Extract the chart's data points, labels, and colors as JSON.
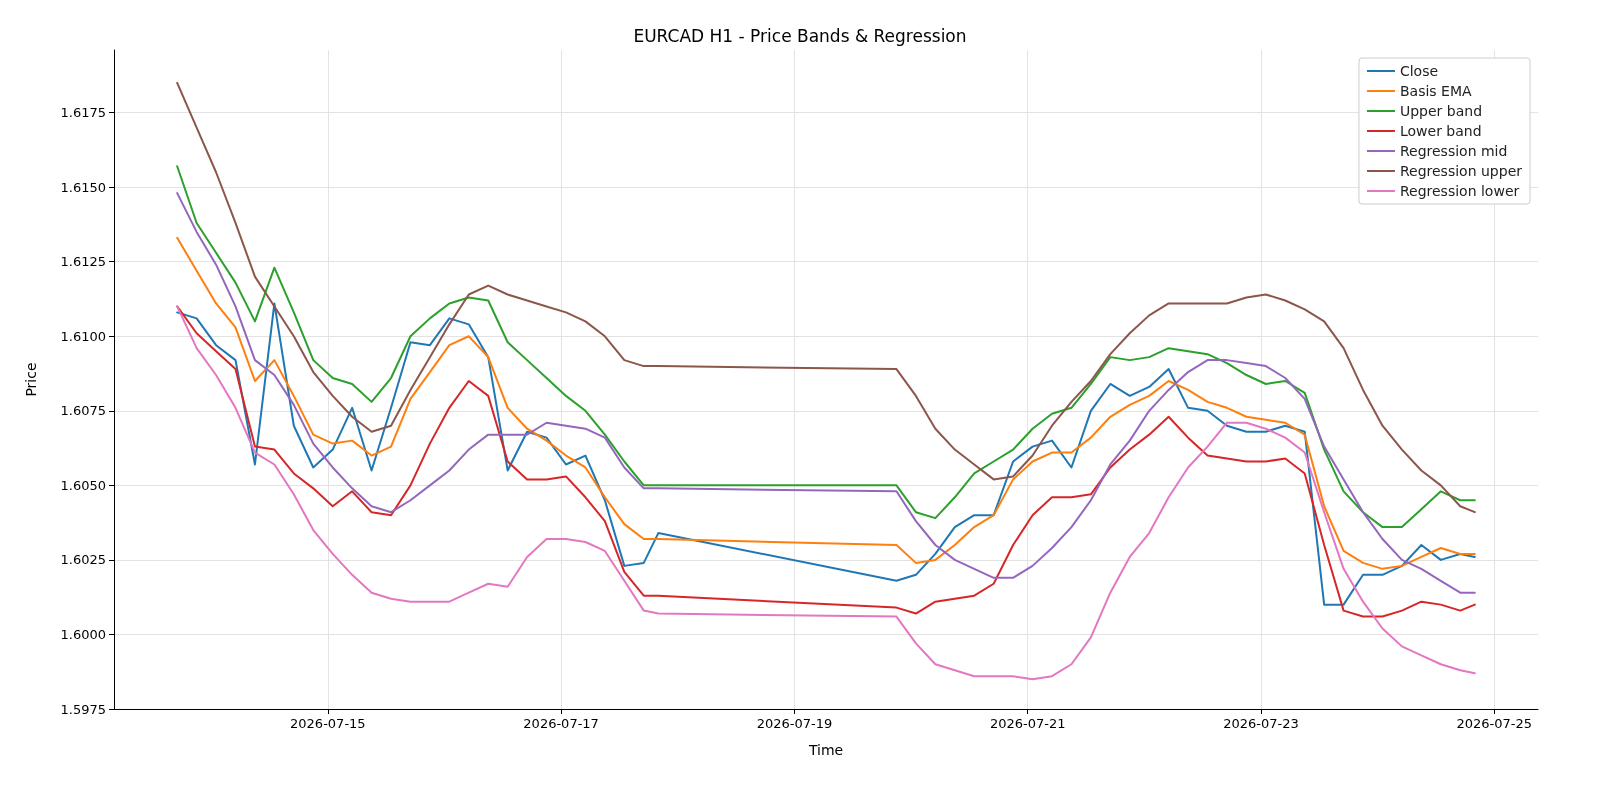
{
  "chart_data": {
    "type": "line",
    "title": "EURCAD H1 - Price Bands & Regression",
    "xlabel": "Time",
    "ylabel": "Price",
    "x": [
      "2026-07-13T17:00",
      "2026-07-13T21:00",
      "2026-07-14T01:00",
      "2026-07-14T05:00",
      "2026-07-14T09:00",
      "2026-07-14T13:00",
      "2026-07-14T17:00",
      "2026-07-14T21:00",
      "2026-07-15T01:00",
      "2026-07-15T05:00",
      "2026-07-15T09:00",
      "2026-07-15T13:00",
      "2026-07-15T17:00",
      "2026-07-15T21:00",
      "2026-07-16T01:00",
      "2026-07-16T05:00",
      "2026-07-16T09:00",
      "2026-07-16T13:00",
      "2026-07-16T17:00",
      "2026-07-16T21:00",
      "2026-07-17T01:00",
      "2026-07-17T05:00",
      "2026-07-17T09:00",
      "2026-07-17T13:00",
      "2026-07-17T17:00",
      "2026-07-17T20:00",
      "2026-07-19T21:00",
      "2026-07-20T01:00",
      "2026-07-20T05:00",
      "2026-07-20T09:00",
      "2026-07-20T13:00",
      "2026-07-20T17:00",
      "2026-07-20T21:00",
      "2026-07-21T01:00",
      "2026-07-21T05:00",
      "2026-07-21T09:00",
      "2026-07-21T13:00",
      "2026-07-21T17:00",
      "2026-07-21T21:00",
      "2026-07-22T01:00",
      "2026-07-22T05:00",
      "2026-07-22T09:00",
      "2026-07-22T13:00",
      "2026-07-22T17:00",
      "2026-07-22T21:00",
      "2026-07-23T01:00",
      "2026-07-23T05:00",
      "2026-07-23T09:00",
      "2026-07-23T13:00",
      "2026-07-23T17:00",
      "2026-07-23T21:00",
      "2026-07-24T01:00",
      "2026-07-24T05:00",
      "2026-07-24T09:00",
      "2026-07-24T13:00",
      "2026-07-24T17:00",
      "2026-07-24T20:00"
    ],
    "series": [
      {
        "name": "Close",
        "color": "#1f77b4",
        "values": [
          1.6108,
          1.6106,
          1.6097,
          1.6092,
          1.6057,
          1.6111,
          1.607,
          1.6056,
          1.6062,
          1.6076,
          1.6055,
          1.6076,
          1.6098,
          1.6097,
          1.6106,
          1.6104,
          1.6093,
          1.6055,
          1.6068,
          1.6066,
          1.6057,
          1.606,
          1.6045,
          1.6023,
          1.6024,
          1.6034,
          1.6018,
          1.602,
          1.6027,
          1.6036,
          1.604,
          1.604,
          1.6058,
          1.6063,
          1.6065,
          1.6056,
          1.6075,
          1.6084,
          1.608,
          1.6083,
          1.6089,
          1.6076,
          1.6075,
          1.607,
          1.6068,
          1.6068,
          1.607,
          1.6068,
          1.601,
          1.601,
          1.602,
          1.602,
          1.6023,
          1.603,
          1.6025,
          1.6027,
          1.6026
        ]
      },
      {
        "name": "Basis EMA",
        "color": "#ff7f0e",
        "values": [
          1.6133,
          1.6122,
          1.6111,
          1.6103,
          1.6085,
          1.6092,
          1.608,
          1.6067,
          1.6064,
          1.6065,
          1.606,
          1.6063,
          1.6079,
          1.6088,
          1.6097,
          1.61,
          1.6093,
          1.6076,
          1.6069,
          1.6065,
          1.606,
          1.6056,
          1.6046,
          1.6037,
          1.6032,
          1.6032,
          1.603,
          1.6024,
          1.6025,
          1.603,
          1.6036,
          1.604,
          1.6052,
          1.6058,
          1.6061,
          1.6061,
          1.6066,
          1.6073,
          1.6077,
          1.608,
          1.6085,
          1.6082,
          1.6078,
          1.6076,
          1.6073,
          1.6072,
          1.6071,
          1.6067,
          1.6043,
          1.6028,
          1.6024,
          1.6022,
          1.6023,
          1.6026,
          1.6029,
          1.6027,
          1.6027
        ]
      },
      {
        "name": "Upper band",
        "color": "#2ca02c",
        "values": [
          1.6157,
          1.6138,
          1.6128,
          1.6118,
          1.6105,
          1.6123,
          1.6108,
          1.6092,
          1.6086,
          1.6084,
          1.6078,
          1.6086,
          1.61,
          1.6106,
          1.6111,
          1.6113,
          1.6112,
          1.6098,
          1.6092,
          1.6086,
          1.608,
          1.6075,
          1.6067,
          1.6058,
          1.605,
          1.605,
          1.605,
          1.6041,
          1.6039,
          1.6046,
          1.6054,
          1.6058,
          1.6062,
          1.6069,
          1.6074,
          1.6076,
          1.6084,
          1.6093,
          1.6092,
          1.6093,
          1.6096,
          1.6095,
          1.6094,
          1.6091,
          1.6087,
          1.6084,
          1.6085,
          1.6081,
          1.6062,
          1.6048,
          1.6041,
          1.6036,
          1.6036,
          1.6042,
          1.6048,
          1.6045,
          1.6045
        ]
      },
      {
        "name": "Lower band",
        "color": "#d62728",
        "values": [
          1.611,
          1.6101,
          1.6095,
          1.6089,
          1.6063,
          1.6062,
          1.6054,
          1.6049,
          1.6043,
          1.6048,
          1.6041,
          1.604,
          1.605,
          1.6064,
          1.6076,
          1.6085,
          1.608,
          1.6058,
          1.6052,
          1.6052,
          1.6053,
          1.6046,
          1.6038,
          1.6021,
          1.6013,
          1.6013,
          1.6009,
          1.6007,
          1.6011,
          1.6012,
          1.6013,
          1.6017,
          1.603,
          1.604,
          1.6046,
          1.6046,
          1.6047,
          1.6056,
          1.6062,
          1.6067,
          1.6073,
          1.6066,
          1.606,
          1.6059,
          1.6058,
          1.6058,
          1.6059,
          1.6054,
          1.603,
          1.6008,
          1.6006,
          1.6006,
          1.6008,
          1.6011,
          1.601,
          1.6008,
          1.601
        ]
      },
      {
        "name": "Regression mid",
        "color": "#9467bd",
        "values": [
          1.6148,
          1.6135,
          1.6124,
          1.611,
          1.6092,
          1.6087,
          1.6077,
          1.6064,
          1.6056,
          1.6049,
          1.6043,
          1.6041,
          1.6045,
          1.605,
          1.6055,
          1.6062,
          1.6067,
          1.6067,
          1.6067,
          1.6071,
          1.607,
          1.6069,
          1.6066,
          1.6056,
          1.6049,
          1.6049,
          1.6048,
          1.6038,
          1.603,
          1.6025,
          1.6022,
          1.6019,
          1.6019,
          1.6023,
          1.6029,
          1.6036,
          1.6045,
          1.6057,
          1.6065,
          1.6075,
          1.6082,
          1.6088,
          1.6092,
          1.6092,
          1.6091,
          1.609,
          1.6086,
          1.6079,
          1.6063,
          1.6052,
          1.6041,
          1.6032,
          1.6025,
          1.6022,
          1.6018,
          1.6014,
          1.6014
        ]
      },
      {
        "name": "Regression upper",
        "color": "#8c564b",
        "values": [
          1.6185,
          1.617,
          1.6155,
          1.6138,
          1.612,
          1.611,
          1.61,
          1.6088,
          1.608,
          1.6073,
          1.6068,
          1.607,
          1.6082,
          1.6093,
          1.6104,
          1.6114,
          1.6117,
          1.6114,
          1.6112,
          1.611,
          1.6108,
          1.6105,
          1.61,
          1.6092,
          1.609,
          1.609,
          1.6089,
          1.608,
          1.6069,
          1.6062,
          1.6057,
          1.6052,
          1.6053,
          1.606,
          1.607,
          1.6078,
          1.6085,
          1.6094,
          1.6101,
          1.6107,
          1.6111,
          1.6111,
          1.6111,
          1.6111,
          1.6113,
          1.6114,
          1.6112,
          1.6109,
          1.6105,
          1.6096,
          1.6082,
          1.607,
          1.6062,
          1.6055,
          1.605,
          1.6043,
          1.6041
        ]
      },
      {
        "name": "Regression lower",
        "color": "#e377c2",
        "values": [
          1.611,
          1.6096,
          1.6087,
          1.6076,
          1.6061,
          1.6057,
          1.6047,
          1.6035,
          1.6027,
          1.602,
          1.6014,
          1.6012,
          1.6011,
          1.6011,
          1.6011,
          1.6014,
          1.6017,
          1.6016,
          1.6026,
          1.6032,
          1.6032,
          1.6031,
          1.6028,
          1.6018,
          1.6008,
          1.6007,
          1.6006,
          1.5997,
          1.599,
          1.5988,
          1.5986,
          1.5986,
          1.5986,
          1.5985,
          1.5986,
          1.599,
          1.5999,
          1.6014,
          1.6026,
          1.6034,
          1.6046,
          1.6056,
          1.6063,
          1.6071,
          1.6071,
          1.6069,
          1.6066,
          1.6061,
          1.6041,
          1.6022,
          1.6011,
          1.6002,
          1.5996,
          1.5993,
          1.599,
          1.5988,
          1.5987
        ]
      }
    ],
    "xlim": [
      "2026-07-13T04:00",
      "2026-07-25T09:00"
    ],
    "xticks": [
      {
        "value": "2026-07-15",
        "label": "2026-07-15"
      },
      {
        "value": "2026-07-17",
        "label": "2026-07-17"
      },
      {
        "value": "2026-07-19",
        "label": "2026-07-19"
      },
      {
        "value": "2026-07-21",
        "label": "2026-07-21"
      },
      {
        "value": "2026-07-23",
        "label": "2026-07-23"
      },
      {
        "value": "2026-07-25",
        "label": "2026-07-25"
      }
    ],
    "ylim": [
      1.5975,
      1.6196
    ],
    "yticks": [
      {
        "value": 1.5975,
        "label": "1.5975"
      },
      {
        "value": 1.6,
        "label": "1.6000"
      },
      {
        "value": 1.6025,
        "label": "1.6025"
      },
      {
        "value": 1.605,
        "label": "1.6050"
      },
      {
        "value": 1.6075,
        "label": "1.6075"
      },
      {
        "value": 1.61,
        "label": "1.6100"
      },
      {
        "value": 1.6125,
        "label": "1.6125"
      },
      {
        "value": 1.615,
        "label": "1.6150"
      },
      {
        "value": 1.6175,
        "label": "1.6175"
      }
    ],
    "grid": true,
    "legend": "top right"
  }
}
